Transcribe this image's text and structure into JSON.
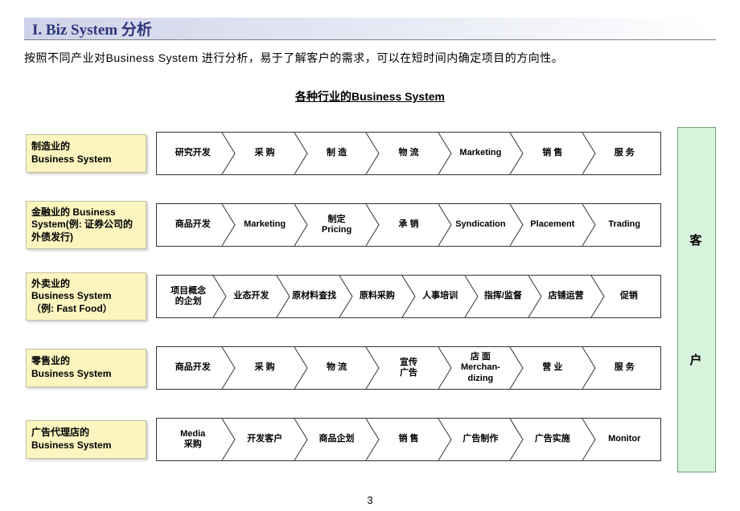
{
  "title": "I. Biz System 分析",
  "subtitle": "按照不同产业对Business  System 进行分析，易于了解客户的需求，可以在短时间内确定项目的方向性。",
  "chart_title": "各种行业的Business System",
  "customer_label_1": "客",
  "customer_label_2": "户",
  "page_number": "3",
  "colors": {
    "title_gradient_start": "#cdd3e9",
    "title_text": "#2e367b",
    "row_label_bg": "#fcf5bf",
    "customer_bg": "#d8f3db",
    "border": "#333333"
  },
  "rows": [
    {
      "label": "制造业的\nBusiness System",
      "steps": [
        "研究开发",
        "采  购",
        "制  造",
        "物  流",
        "Marketing",
        "销  售",
        "服  务"
      ]
    },
    {
      "label": "金融业的 Business System(例: 证券公司的外债发行)",
      "steps": [
        "商品开发",
        "Marketing",
        "制定\nPricing",
        "承  销",
        "Syndication",
        "Placement",
        "Trading"
      ]
    },
    {
      "label": "外卖业的\nBusiness System\n（例: Fast Food）",
      "steps": [
        "项目概念\n的企划",
        "业态开发",
        "原材料查找",
        "原料采购",
        "人事培训",
        "指挥/监督",
        "店铺运营",
        "促销"
      ]
    },
    {
      "label": "零售业的\nBusiness System",
      "steps": [
        "商品开发",
        "采  购",
        "物  流",
        "宣传\n广告",
        "店 面\nMerchan-\ndizing",
        "营  业",
        "服  务"
      ]
    },
    {
      "label": "广告代理店的\nBusiness System",
      "steps": [
        "Media\n采购",
        "开发客户",
        "商品企划",
        "销  售",
        "广告制作",
        "广告实施",
        "Monitor"
      ]
    }
  ]
}
